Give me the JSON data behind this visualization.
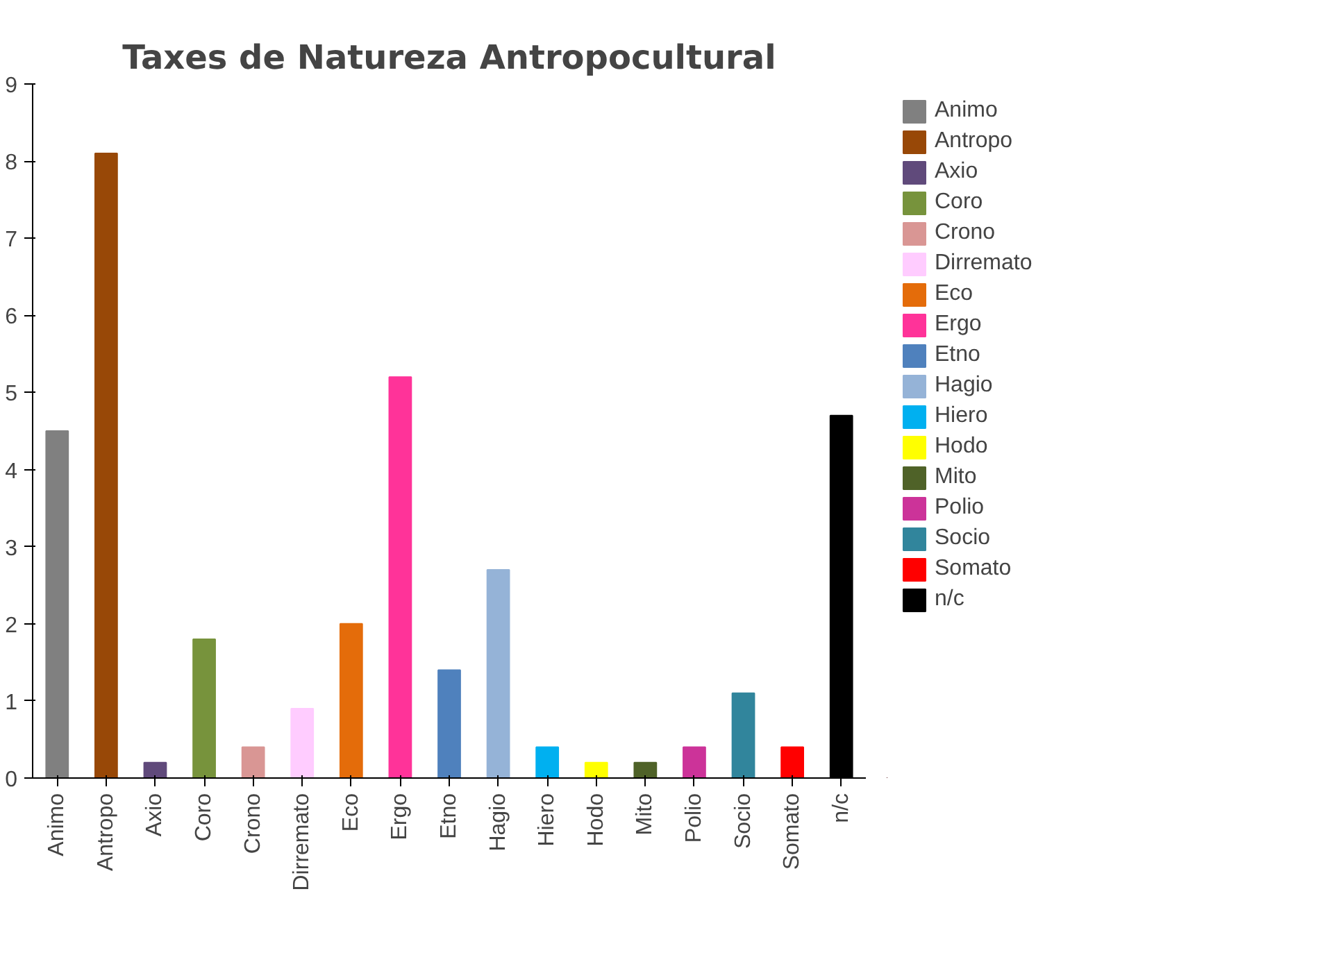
{
  "chart_data": {
    "type": "bar",
    "title": "Taxes de Natureza Antropocultural",
    "categories": [
      "Animo",
      "Antropo",
      "Axio",
      "Coro",
      "Crono",
      "Dirremato",
      "Eco",
      "Ergo",
      "Etno",
      "Hagio",
      "Hiero",
      "Hodo",
      "Mito",
      "Polio",
      "Socio",
      "Somato",
      "n/c"
    ],
    "series": [
      {
        "name": "Animo",
        "color": "#808080",
        "values": [
          4.5,
          null,
          null,
          null,
          null,
          null,
          null,
          null,
          null,
          null,
          null,
          null,
          null,
          null,
          null,
          null,
          null
        ]
      },
      {
        "name": "Antropo",
        "color": "#984807",
        "values": [
          null,
          8.1,
          null,
          null,
          null,
          null,
          null,
          null,
          null,
          null,
          null,
          null,
          null,
          null,
          null,
          null,
          null
        ]
      },
      {
        "name": "Axio",
        "color": "#604a7b",
        "values": [
          null,
          null,
          0.2,
          null,
          null,
          null,
          null,
          null,
          null,
          null,
          null,
          null,
          null,
          null,
          null,
          null,
          null
        ]
      },
      {
        "name": "Coro",
        "color": "#77933c",
        "values": [
          null,
          null,
          null,
          1.8,
          null,
          null,
          null,
          null,
          null,
          null,
          null,
          null,
          null,
          null,
          null,
          null,
          null
        ]
      },
      {
        "name": "Crono",
        "color": "#d99694",
        "values": [
          null,
          null,
          null,
          null,
          0.4,
          null,
          null,
          null,
          null,
          null,
          null,
          null,
          null,
          null,
          null,
          null,
          null
        ]
      },
      {
        "name": "Dirremato",
        "color": "#ffccff",
        "values": [
          null,
          null,
          null,
          null,
          null,
          0.9,
          null,
          null,
          null,
          null,
          null,
          null,
          null,
          null,
          null,
          null,
          null
        ]
      },
      {
        "name": "Eco",
        "color": "#e46c0a",
        "values": [
          null,
          null,
          null,
          null,
          null,
          null,
          2.0,
          null,
          null,
          null,
          null,
          null,
          null,
          null,
          null,
          null,
          null
        ]
      },
      {
        "name": "Ergo",
        "color": "#ff3399",
        "values": [
          null,
          null,
          null,
          null,
          null,
          null,
          null,
          5.2,
          null,
          null,
          null,
          null,
          null,
          null,
          null,
          null,
          null
        ]
      },
      {
        "name": "Etno",
        "color": "#4f81bd",
        "values": [
          null,
          null,
          null,
          null,
          null,
          null,
          null,
          null,
          1.4,
          null,
          null,
          null,
          null,
          null,
          null,
          null,
          null
        ]
      },
      {
        "name": "Hagio",
        "color": "#95b3d7",
        "values": [
          null,
          null,
          null,
          null,
          null,
          null,
          null,
          null,
          null,
          2.7,
          null,
          null,
          null,
          null,
          null,
          null,
          null
        ]
      },
      {
        "name": "Hiero",
        "color": "#00b0f0",
        "values": [
          null,
          null,
          null,
          null,
          null,
          null,
          null,
          null,
          null,
          null,
          0.4,
          null,
          null,
          null,
          null,
          null,
          null
        ]
      },
      {
        "name": "Hodo",
        "color": "#ffff00",
        "values": [
          null,
          null,
          null,
          null,
          null,
          null,
          null,
          null,
          null,
          null,
          null,
          0.2,
          null,
          null,
          null,
          null,
          null
        ]
      },
      {
        "name": "Mito",
        "color": "#4f6228",
        "values": [
          null,
          null,
          null,
          null,
          null,
          null,
          null,
          null,
          null,
          null,
          null,
          null,
          0.2,
          null,
          null,
          null,
          null
        ]
      },
      {
        "name": "Polio",
        "color": "#cc3399",
        "values": [
          null,
          null,
          null,
          null,
          null,
          null,
          null,
          null,
          null,
          null,
          null,
          null,
          null,
          0.4,
          null,
          null,
          null
        ]
      },
      {
        "name": "Socio",
        "color": "#31859c",
        "values": [
          null,
          null,
          null,
          null,
          null,
          null,
          null,
          null,
          null,
          null,
          null,
          null,
          null,
          null,
          1.1,
          null,
          null
        ]
      },
      {
        "name": "Somato",
        "color": "#ff0000",
        "values": [
          null,
          null,
          null,
          null,
          null,
          null,
          null,
          null,
          null,
          null,
          null,
          null,
          null,
          null,
          null,
          0.4,
          null
        ]
      },
      {
        "name": "n/c",
        "color": "#000000",
        "values": [
          null,
          null,
          null,
          null,
          null,
          null,
          null,
          null,
          null,
          null,
          null,
          null,
          null,
          null,
          null,
          null,
          4.7
        ]
      }
    ],
    "ylim": [
      0,
      9
    ],
    "yticks": [
      0,
      1,
      2,
      3,
      4,
      5,
      6,
      7,
      8,
      9
    ],
    "grid": false,
    "legend": "right"
  }
}
